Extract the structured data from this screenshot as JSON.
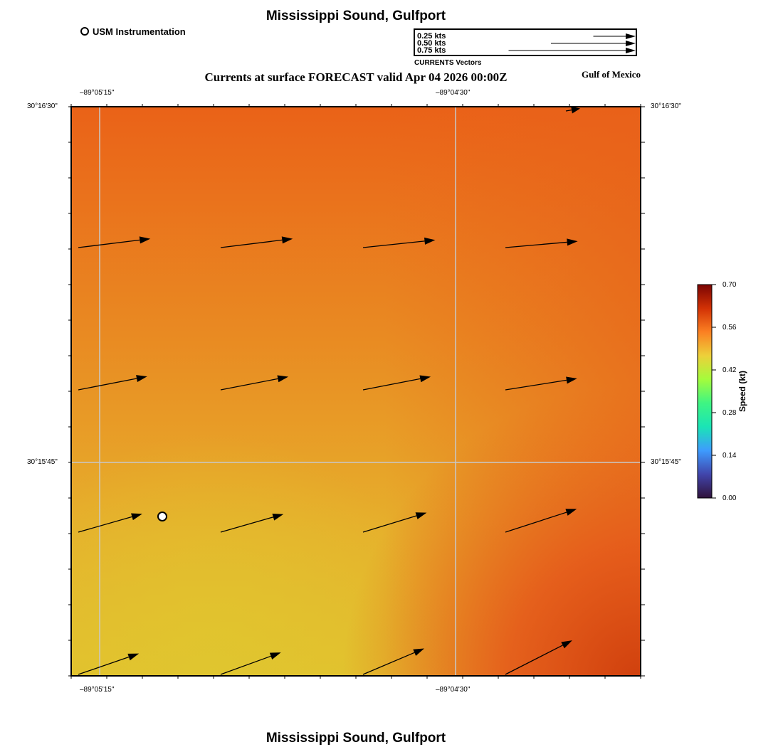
{
  "title_top": "Mississippi Sound, Gulfport",
  "title_bottom": "Mississippi Sound, Gulfport",
  "subtitle": "Currents at surface FORECAST valid Apr 04 2026 00:00Z",
  "region_label": "Gulf of Mexico",
  "instrument_legend": "USM Instrumentation",
  "vector_legend": {
    "title": "CURRENTS Vectors",
    "items": [
      {
        "label": "0.25 kts",
        "speed": 0.25
      },
      {
        "label": "0.50 kts",
        "speed": 0.5
      },
      {
        "label": "0.75 kts",
        "speed": 0.75
      }
    ]
  },
  "map": {
    "lon_labels": {
      "left": "–89°05'15\"",
      "right": "–89°04'30\""
    },
    "lat_labels": {
      "top": "30°16'30\"",
      "middle": "30°15'45\""
    },
    "instrument_marker": {
      "name": "USM Instrumentation",
      "lon": -89.0853,
      "lat": 30.2606
    }
  },
  "colorbar": {
    "label": "Speed (kt)",
    "min": 0.0,
    "max": 0.7,
    "ticks": [
      "0.70",
      "0.56",
      "0.42",
      "0.28",
      "0.14",
      "0.00"
    ],
    "colors": [
      "#7a0403",
      "#d23105",
      "#fb8022",
      "#edd03a",
      "#a4fc3c",
      "#3ef583",
      "#1ae4b6",
      "#3e9bfe",
      "#4145ab",
      "#30123b"
    ]
  },
  "current_vectors": [
    {
      "row": 1,
      "col": 1,
      "speed": 0.6,
      "dir_deg": 83
    },
    {
      "row": 1,
      "col": 2,
      "speed": 0.6,
      "dir_deg": 83
    },
    {
      "row": 1,
      "col": 3,
      "speed": 0.6,
      "dir_deg": 84
    },
    {
      "row": 1,
      "col": 4,
      "speed": 0.6,
      "dir_deg": 85
    },
    {
      "row": 2,
      "col": 1,
      "speed": 0.58,
      "dir_deg": 79
    },
    {
      "row": 2,
      "col": 2,
      "speed": 0.57,
      "dir_deg": 79
    },
    {
      "row": 2,
      "col": 3,
      "speed": 0.57,
      "dir_deg": 79
    },
    {
      "row": 2,
      "col": 4,
      "speed": 0.6,
      "dir_deg": 81
    },
    {
      "row": 3,
      "col": 1,
      "speed": 0.55,
      "dir_deg": 74
    },
    {
      "row": 3,
      "col": 2,
      "speed": 0.54,
      "dir_deg": 74
    },
    {
      "row": 3,
      "col": 3,
      "speed": 0.55,
      "dir_deg": 73
    },
    {
      "row": 3,
      "col": 4,
      "speed": 0.62,
      "dir_deg": 72
    },
    {
      "row": 4,
      "col": 1,
      "speed": 0.53,
      "dir_deg": 71
    },
    {
      "row": 4,
      "col": 2,
      "speed": 0.53,
      "dir_deg": 70
    },
    {
      "row": 4,
      "col": 3,
      "speed": 0.55,
      "dir_deg": 67
    },
    {
      "row": 4,
      "col": 4,
      "speed": 0.62,
      "dir_deg": 63
    },
    {
      "row": 0,
      "col": 4,
      "speed": 0.12,
      "dir_deg": 80
    }
  ]
}
